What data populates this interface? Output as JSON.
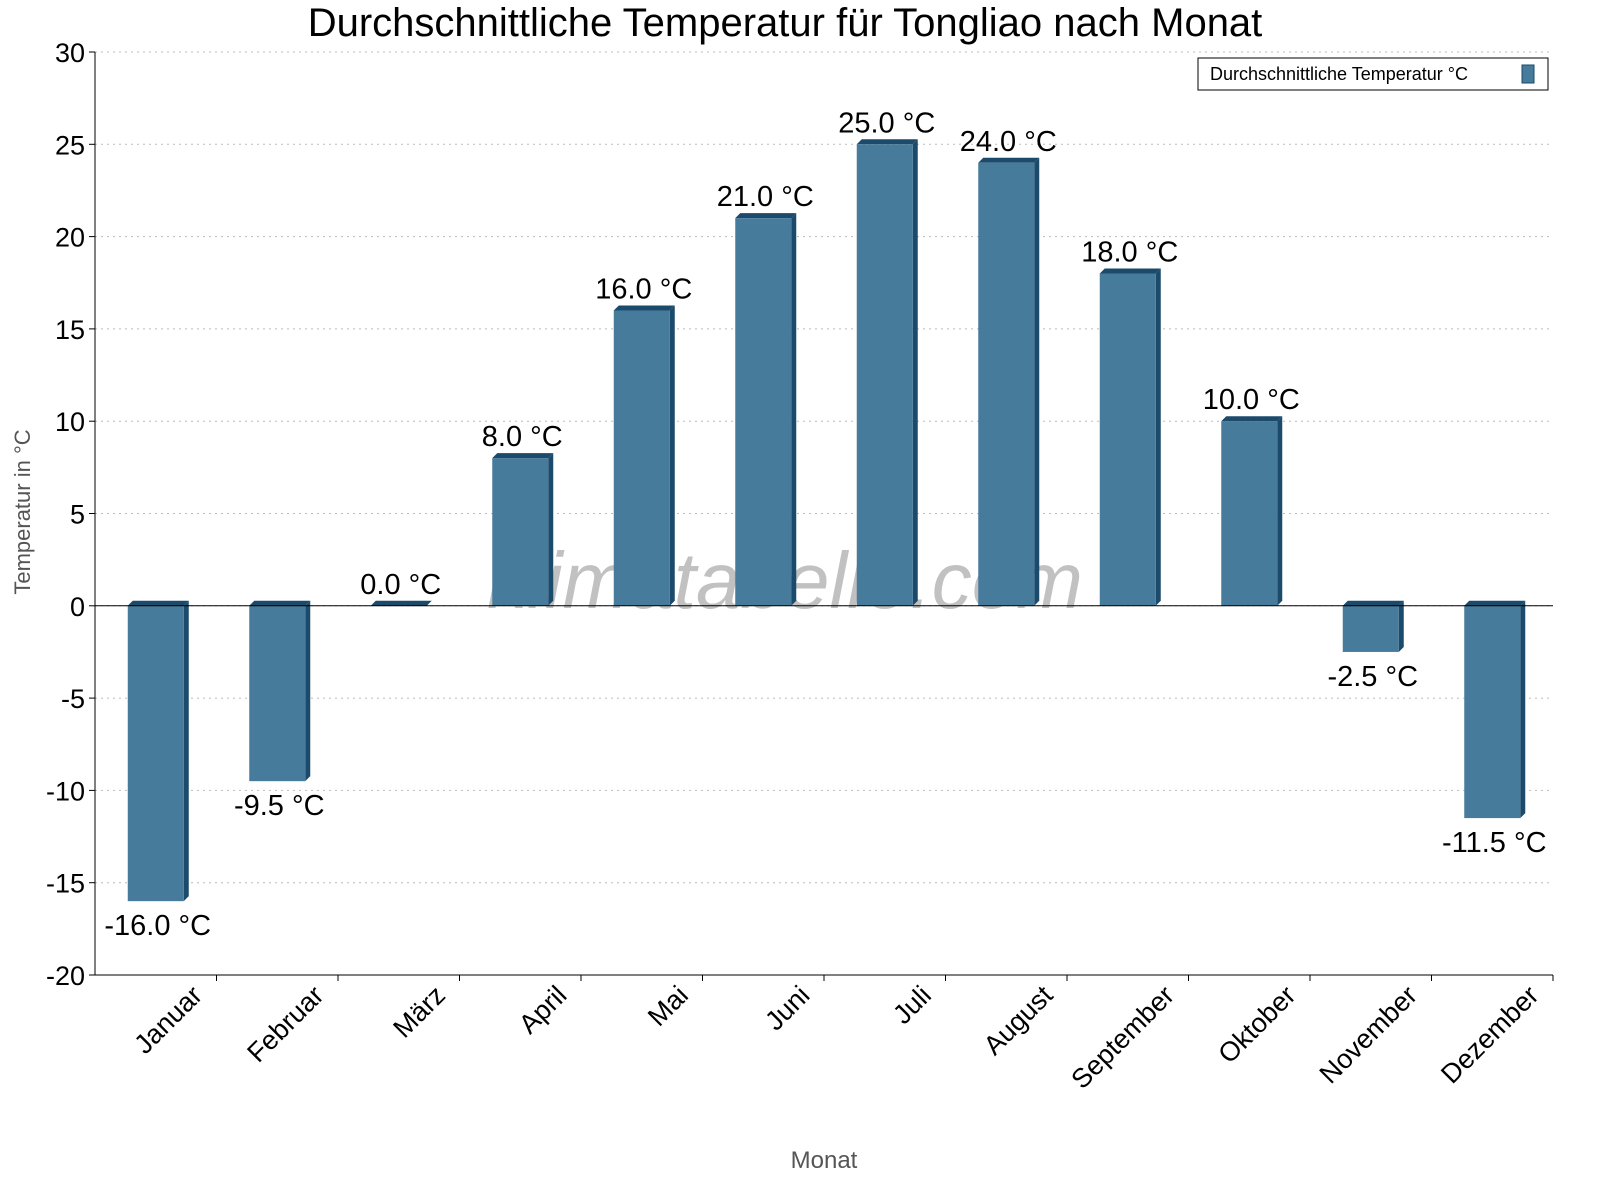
{
  "chart_data": {
    "type": "bar",
    "title": "Durchschnittliche Temperatur für Tongliao nach Monat",
    "xlabel": "Monat",
    "ylabel": "Temperatur in °C",
    "categories": [
      "Januar",
      "Februar",
      "März",
      "April",
      "Mai",
      "Juni",
      "Juli",
      "August",
      "September",
      "Oktober",
      "November",
      "Dezember"
    ],
    "series": [
      {
        "name": "Durchschnittliche Temperatur °C",
        "values": [
          -16.0,
          -9.5,
          0.0,
          8.0,
          16.0,
          21.0,
          25.0,
          24.0,
          18.0,
          10.0,
          -2.5,
          -11.5
        ],
        "labels": [
          "-16.0 °C",
          "-9.5 °C",
          "0.0 °C",
          "8.0 °C",
          "16.0 °C",
          "21.0 °C",
          "25.0 °C",
          "24.0 °C",
          "18.0 °C",
          "10.0 °C",
          "-2.5 °C",
          "-11.5 °C"
        ]
      }
    ],
    "ylim": [
      -20,
      30
    ],
    "yticks": [
      "-20",
      "-15",
      "-10",
      "-5",
      "0",
      "5",
      "10",
      "15",
      "20",
      "25",
      "30"
    ],
    "grid": true,
    "legend_position": "top-right",
    "colors": {
      "bar": "#467b9c",
      "bar_shade": "#1b4a6b"
    },
    "watermark": "klimatabelle.com"
  }
}
